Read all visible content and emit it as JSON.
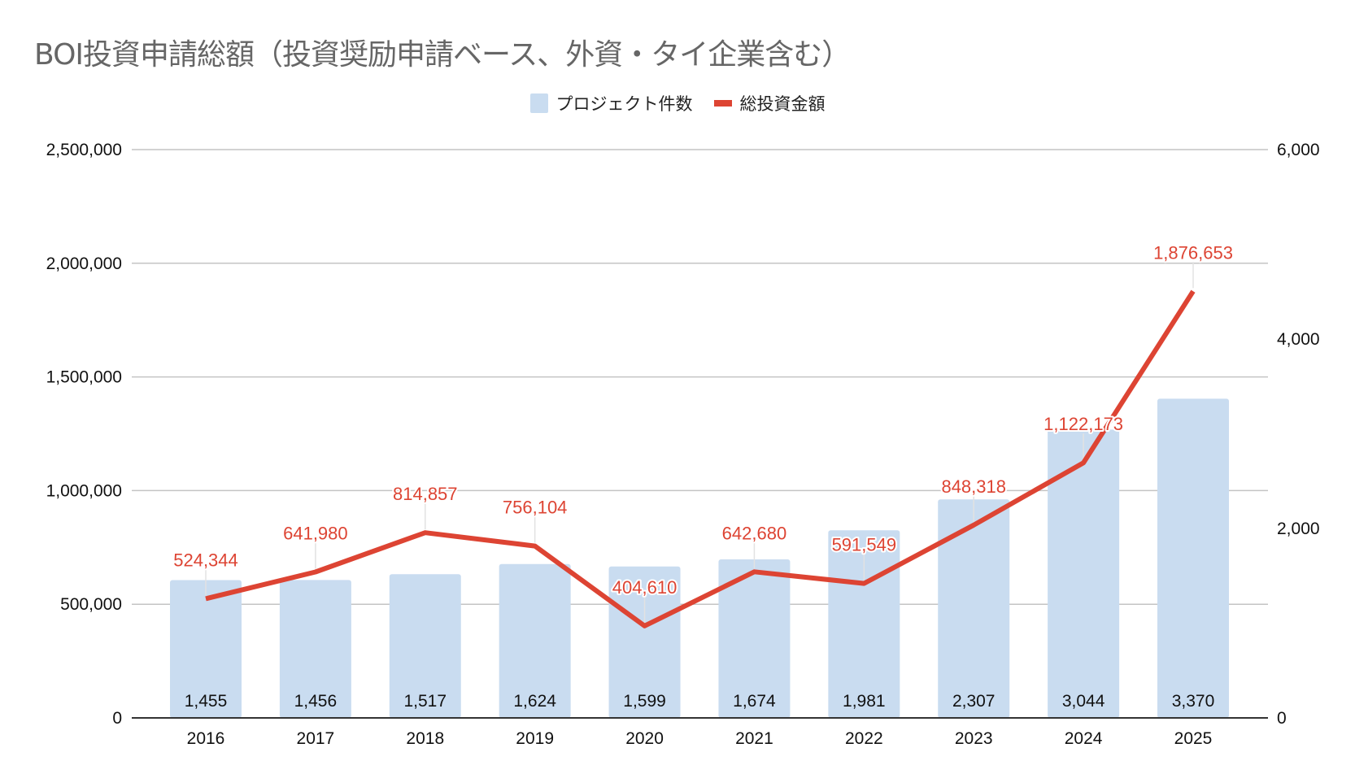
{
  "title": "BOI投資申請総額（投資奨励申請ベース、外資・タイ企業含む）",
  "legend": [
    {
      "label": "プロジェクト件数",
      "color": "#c9dcf0",
      "type": "bar"
    },
    {
      "label": "総投資金額",
      "color": "#dd4433",
      "type": "line"
    }
  ],
  "chart_data": {
    "type": "bar+line",
    "title": "BOI投資申請総額（投資奨励申請ベース、外資・タイ企業含む）",
    "categories": [
      "2016",
      "2017",
      "2018",
      "2019",
      "2020",
      "2021",
      "2022",
      "2023",
      "2024",
      "2025"
    ],
    "series": [
      {
        "name": "プロジェクト件数",
        "type": "bar",
        "axis": "right",
        "values": [
          1455,
          1456,
          1517,
          1624,
          1599,
          1674,
          1981,
          2307,
          3044,
          3370
        ],
        "labels": [
          "1,455",
          "1,456",
          "1,517",
          "1,624",
          "1,599",
          "1,674",
          "1,981",
          "2,307",
          "3,044",
          "3,370"
        ]
      },
      {
        "name": "総投資金額",
        "type": "line",
        "axis": "left",
        "values": [
          524344,
          641980,
          814857,
          756104,
          404610,
          642680,
          591549,
          848318,
          1122173,
          1876653
        ],
        "labels": [
          "524,344",
          "641,980",
          "814,857",
          "756,104",
          "404,610",
          "642,680",
          "591,549",
          "848,318",
          "1,122,173",
          "1,876,653"
        ]
      }
    ],
    "left_axis": {
      "range": [
        0,
        2500000
      ],
      "ticks": [
        0,
        500000,
        1000000,
        1500000,
        2000000,
        2500000
      ],
      "tick_labels": [
        "0",
        "500,000",
        "1,000,000",
        "1,500,000",
        "2,000,000",
        "2,500,000"
      ]
    },
    "right_axis": {
      "range": [
        0,
        6000
      ],
      "ticks": [
        0,
        2000,
        4000,
        6000
      ],
      "tick_labels": [
        "0",
        "2,000",
        "4,000",
        "6,000"
      ]
    },
    "grid": true,
    "legend_position": "top-center"
  }
}
